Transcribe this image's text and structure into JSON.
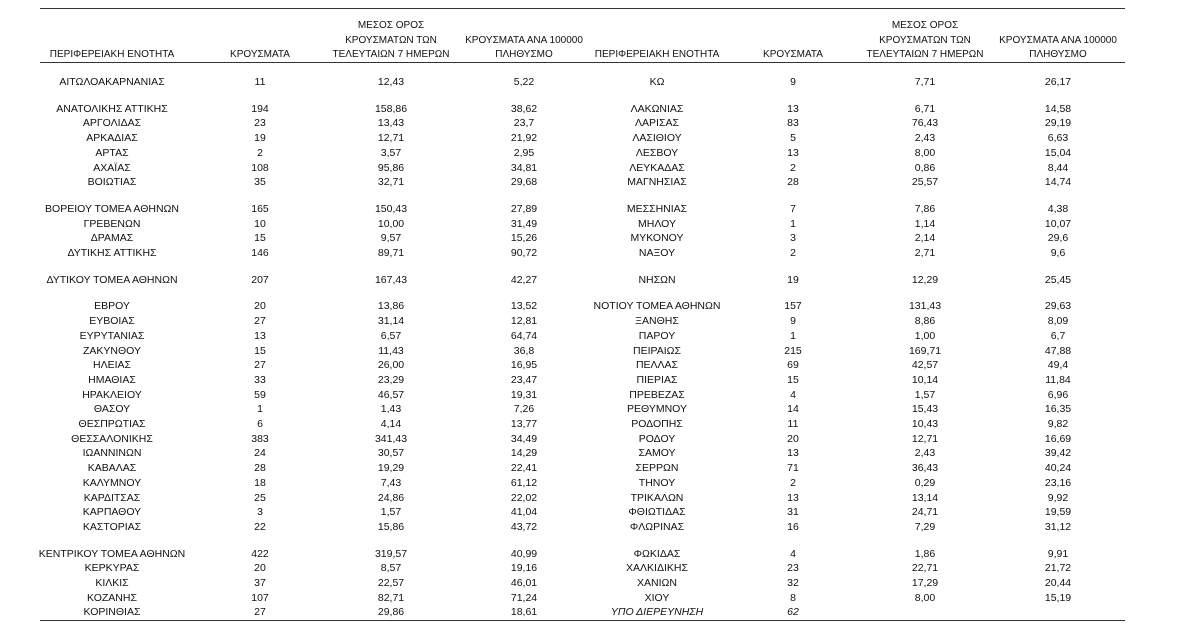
{
  "header": {
    "left": [
      [
        "ΠΕΡΙΦΕΡΕΙΑΚΗ ΕΝΟΤΗΤΑ"
      ],
      [
        "ΚΡΟΥΣΜΑΤΑ"
      ],
      [
        "ΜΕΣΟΣ ΟΡΟΣ",
        "ΚΡΟΥΣΜΑΤΩΝ ΤΩΝ",
        "ΤΕΛΕΥΤΑΙΩΝ 7 ΗΜΕΡΩΝ"
      ],
      [
        "ΚΡΟΥΣΜΑΤΑ ΑΝΑ 100000",
        "ΠΛΗΘΥΣΜΟ"
      ]
    ],
    "right": [
      [
        "ΠΕΡΙΦΕΡΕΙΑΚΗ ΕΝΟΤΗΤΑ"
      ],
      [
        "ΚΡΟΥΣΜΑΤΑ"
      ],
      [
        "ΜΕΣΟΣ ΟΡΟΣ",
        "ΚΡΟΥΣΜΑΤΩΝ ΤΩΝ",
        "ΤΕΛΕΥΤΑΙΩΝ 7 ΗΜΕΡΩΝ"
      ],
      [
        "ΚΡΟΥΣΜΑΤΑ ΑΝΑ 100000",
        "ΠΛΗΘΥΣΜΟ"
      ]
    ]
  },
  "groups": [
    {
      "rows": [
        {
          "left": [
            "ΑΙΤΩΛΟΑΚΑΡΝΑΝΙΑΣ",
            "11",
            "12,43",
            "5,22"
          ],
          "right": [
            "ΚΩ",
            "9",
            "7,71",
            "26,17"
          ]
        }
      ]
    },
    {
      "rows": [
        {
          "left": [
            "ΑΝΑΤΟΛΙΚΗΣ ΑΤΤΙΚΗΣ",
            "194",
            "158,86",
            "38,62"
          ],
          "right": [
            "ΛΑΚΩΝΙΑΣ",
            "13",
            "6,71",
            "14,58"
          ]
        },
        {
          "left": [
            "ΑΡΓΟΛΙΔΑΣ",
            "23",
            "13,43",
            "23,7"
          ],
          "right": [
            "ΛΑΡΙΣΑΣ",
            "83",
            "76,43",
            "29,19"
          ]
        },
        {
          "left": [
            "ΑΡΚΑΔΙΑΣ",
            "19",
            "12,71",
            "21,92"
          ],
          "right": [
            "ΛΑΣΙΘΙΟΥ",
            "5",
            "2,43",
            "6,63"
          ]
        },
        {
          "left": [
            "ΑΡΤΑΣ",
            "2",
            "3,57",
            "2,95"
          ],
          "right": [
            "ΛΕΣΒΟΥ",
            "13",
            "8,00",
            "15,04"
          ]
        },
        {
          "left": [
            "ΑΧΑΪΑΣ",
            "108",
            "95,86",
            "34,81"
          ],
          "right": [
            "ΛΕΥΚΑΔΑΣ",
            "2",
            "0,86",
            "8,44"
          ]
        },
        {
          "left": [
            "ΒΟΙΩΤΙΑΣ",
            "35",
            "32,71",
            "29,68"
          ],
          "right": [
            "ΜΑΓΝΗΣΙΑΣ",
            "28",
            "25,57",
            "14,74"
          ]
        }
      ]
    },
    {
      "rows": [
        {
          "left": [
            "ΒΟΡΕΙΟΥ ΤΟΜΕΑ ΑΘΗΝΩΝ",
            "165",
            "150,43",
            "27,89"
          ],
          "right": [
            "ΜΕΣΣΗΝΙΑΣ",
            "7",
            "7,86",
            "4,38"
          ]
        },
        {
          "left": [
            "ΓΡΕΒΕΝΩΝ",
            "10",
            "10,00",
            "31,49"
          ],
          "right": [
            "ΜΗΛΟΥ",
            "1",
            "1,14",
            "10,07"
          ]
        },
        {
          "left": [
            "ΔΡΑΜΑΣ",
            "15",
            "9,57",
            "15,26"
          ],
          "right": [
            "ΜΥΚΟΝΟΥ",
            "3",
            "2,14",
            "29,6"
          ]
        },
        {
          "left": [
            "ΔΥΤΙΚΗΣ ΑΤΤΙΚΗΣ",
            "146",
            "89,71",
            "90,72"
          ],
          "right": [
            "ΝΑΞΟΥ",
            "2",
            "2,71",
            "9,6"
          ]
        }
      ]
    },
    {
      "rows": [
        {
          "left": [
            "ΔΥΤΙΚΟΥ ΤΟΜΕΑ ΑΘΗΝΩΝ",
            "207",
            "167,43",
            "42,27"
          ],
          "right": [
            "ΝΗΣΩΝ",
            "19",
            "12,29",
            "25,45"
          ]
        }
      ]
    },
    {
      "rows": [
        {
          "left": [
            "ΕΒΡΟΥ",
            "20",
            "13,86",
            "13,52"
          ],
          "right": [
            "ΝΟΤΙΟΥ ΤΟΜΕΑ ΑΘΗΝΩΝ",
            "157",
            "131,43",
            "29,63"
          ]
        },
        {
          "left": [
            "ΕΥΒΟΙΑΣ",
            "27",
            "31,14",
            "12,81"
          ],
          "right": [
            "ΞΑΝΘΗΣ",
            "9",
            "8,86",
            "8,09"
          ]
        },
        {
          "left": [
            "ΕΥΡΥΤΑΝΙΑΣ",
            "13",
            "6,57",
            "64,74"
          ],
          "right": [
            "ΠΑΡΟΥ",
            "1",
            "1,00",
            "6,7"
          ]
        },
        {
          "left": [
            "ΖΑΚΥΝΘΟΥ",
            "15",
            "11,43",
            "36,8"
          ],
          "right": [
            "ΠΕΙΡΑΙΩΣ",
            "215",
            "169,71",
            "47,88"
          ]
        },
        {
          "left": [
            "ΗΛΕΙΑΣ",
            "27",
            "26,00",
            "16,95"
          ],
          "right": [
            "ΠΕΛΛΑΣ",
            "69",
            "42,57",
            "49,4"
          ]
        },
        {
          "left": [
            "ΗΜΑΘΙΑΣ",
            "33",
            "23,29",
            "23,47"
          ],
          "right": [
            "ΠΙΕΡΙΑΣ",
            "15",
            "10,14",
            "11,84"
          ]
        },
        {
          "left": [
            "ΗΡΑΚΛΕΙΟΥ",
            "59",
            "46,57",
            "19,31"
          ],
          "right": [
            "ΠΡΕΒΕΖΑΣ",
            "4",
            "1,57",
            "6,96"
          ]
        },
        {
          "left": [
            "ΘΑΣΟΥ",
            "1",
            "1,43",
            "7,26"
          ],
          "right": [
            "ΡΕΘΥΜΝΟΥ",
            "14",
            "15,43",
            "16,35"
          ]
        },
        {
          "left": [
            "ΘΕΣΠΡΩΤΙΑΣ",
            "6",
            "4,14",
            "13,77"
          ],
          "right": [
            "ΡΟΔΟΠΗΣ",
            "11",
            "10,43",
            "9,82"
          ]
        },
        {
          "left": [
            "ΘΕΣΣΑΛΟΝΙΚΗΣ",
            "383",
            "341,43",
            "34,49"
          ],
          "right": [
            "ΡΟΔΟΥ",
            "20",
            "12,71",
            "16,69"
          ]
        },
        {
          "left": [
            "ΙΩΑΝΝΙΝΩΝ",
            "24",
            "30,57",
            "14,29"
          ],
          "right": [
            "ΣΑΜΟΥ",
            "13",
            "2,43",
            "39,42"
          ]
        },
        {
          "left": [
            "ΚΑΒΑΛΑΣ",
            "28",
            "19,29",
            "22,41"
          ],
          "right": [
            "ΣΕΡΡΩΝ",
            "71",
            "36,43",
            "40,24"
          ]
        },
        {
          "left": [
            "ΚΑΛΥΜΝΟΥ",
            "18",
            "7,43",
            "61,12"
          ],
          "right": [
            "ΤΗΝΟΥ",
            "2",
            "0,29",
            "23,16"
          ]
        },
        {
          "left": [
            "ΚΑΡΔΙΤΣΑΣ",
            "25",
            "24,86",
            "22,02"
          ],
          "right": [
            "ΤΡΙΚΑΛΩΝ",
            "13",
            "13,14",
            "9,92"
          ]
        },
        {
          "left": [
            "ΚΑΡΠΑΘΟΥ",
            "3",
            "1,57",
            "41,04"
          ],
          "right": [
            "ΦΘΙΩΤΙΔΑΣ",
            "31",
            "24,71",
            "19,59"
          ]
        },
        {
          "left": [
            "ΚΑΣΤΟΡΙΑΣ",
            "22",
            "15,86",
            "43,72"
          ],
          "right": [
            "ΦΛΩΡΙΝΑΣ",
            "16",
            "7,29",
            "31,12"
          ]
        }
      ]
    },
    {
      "rows": [
        {
          "left": [
            "ΚΕΝΤΡΙΚΟΥ ΤΟΜΕΑ ΑΘΗΝΩΝ",
            "422",
            "319,57",
            "40,99"
          ],
          "right": [
            "ΦΩΚΙΔΑΣ",
            "4",
            "1,86",
            "9,91"
          ]
        },
        {
          "left": [
            "ΚΕΡΚΥΡΑΣ",
            "20",
            "8,57",
            "19,16"
          ],
          "right": [
            "ΧΑΛΚΙΔΙΚΗΣ",
            "23",
            "22,71",
            "21,72"
          ]
        },
        {
          "left": [
            "ΚΙΛΚΙΣ",
            "37",
            "22,57",
            "46,01"
          ],
          "right": [
            "ΧΑΝΙΩΝ",
            "32",
            "17,29",
            "20,44"
          ]
        },
        {
          "left": [
            "ΚΟΖΑΝΗΣ",
            "107",
            "82,71",
            "71,24"
          ],
          "right": [
            "ΧΙΟΥ",
            "8",
            "8,00",
            "15,19"
          ]
        },
        {
          "left": [
            "ΚΟΡΙΝΘΙΑΣ",
            "27",
            "29,86",
            "18,61"
          ],
          "right": [
            "ΥΠΟ ΔΙΕΡΕΥΝΗΣΗ",
            "62"
          ]
        }
      ]
    }
  ]
}
